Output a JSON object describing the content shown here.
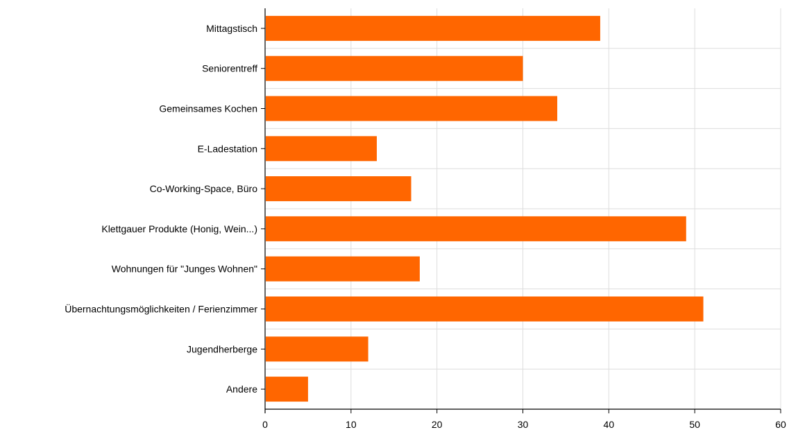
{
  "chart_data": {
    "type": "bar",
    "orientation": "horizontal",
    "title": "",
    "xlabel": "",
    "ylabel": "",
    "categories": [
      "Mittagstisch",
      "Seniorentreff",
      "Gemeinsames Kochen",
      "E-Ladestation",
      "Co-Working-Space, Büro",
      "Klettgauer Produkte (Honig, Wein...)",
      "Wohnungen für \"Junges Wohnen\"",
      "Übernachtungsmöglichkeiten / Ferienzimmer",
      "Jugendherberge",
      "Andere"
    ],
    "values": [
      39,
      30,
      34,
      13,
      17,
      49,
      18,
      51,
      12,
      5
    ],
    "xlim": [
      0,
      60
    ],
    "x_ticks": [
      "0",
      "10",
      "20",
      "30",
      "40",
      "50",
      "60"
    ],
    "grid": true,
    "legend": "none",
    "colors": {
      "bar": "#ff6600",
      "grid": "#dddddd",
      "axis": "#000000"
    }
  }
}
